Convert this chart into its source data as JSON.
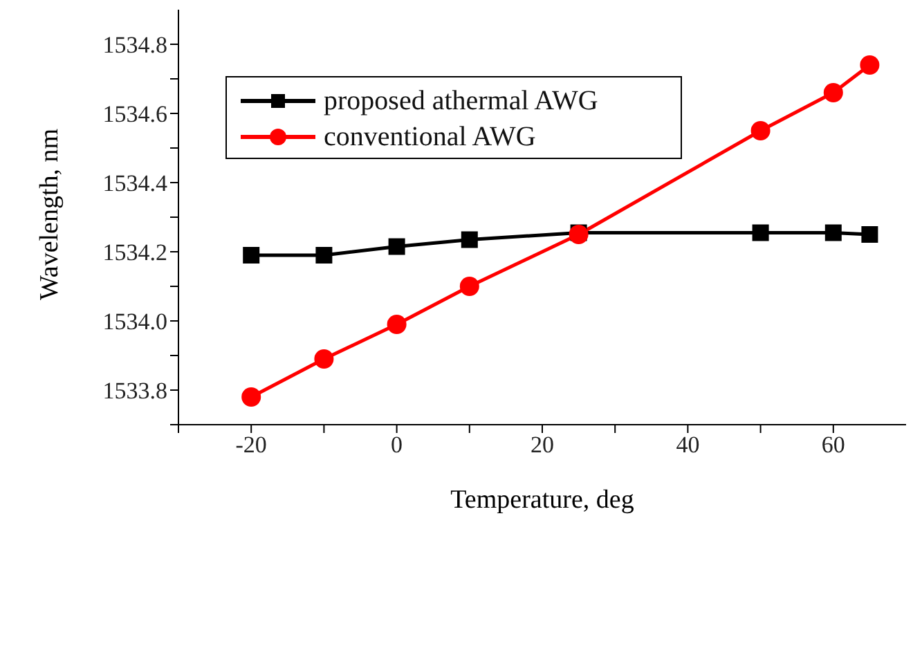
{
  "chart_data": {
    "type": "line",
    "xlabel": "Temperature, deg",
    "ylabel": "Wavelength, nm",
    "x": [
      -20,
      -10,
      0,
      10,
      25,
      50,
      60,
      65
    ],
    "series": [
      {
        "name": "proposed athermal AWG",
        "color": "#000000",
        "marker": "square",
        "values": [
          1534.19,
          1534.19,
          1534.215,
          1534.235,
          1534.255,
          1534.255,
          1534.255,
          1534.25
        ]
      },
      {
        "name": "conventional AWG",
        "color": "#ff0000",
        "marker": "circle",
        "values": [
          1533.78,
          1533.89,
          1533.99,
          1534.1,
          1534.25,
          1534.55,
          1534.66,
          1534.74
        ]
      }
    ],
    "xlim": [
      -30,
      70
    ],
    "xticks": [
      {
        "value": -30,
        "label": null
      },
      -20,
      {
        "value": -10,
        "label": null
      },
      0,
      {
        "value": 10,
        "label": null
      },
      20,
      {
        "value": 30,
        "label": null
      },
      40,
      {
        "value": 50,
        "label": null
      },
      60
    ],
    "ylim": [
      1533.7,
      1534.9
    ],
    "yticks": [
      {
        "value": 1533.7,
        "label": null
      },
      1533.8,
      {
        "value": 1533.9,
        "label": null
      },
      {
        "value": 1534.0,
        "label": "1534.0"
      },
      {
        "value": 1534.1,
        "label": null
      },
      1534.2,
      {
        "value": 1534.3,
        "label": null
      },
      1534.4,
      {
        "value": 1534.5,
        "label": null
      },
      1534.6,
      {
        "value": 1534.7,
        "label": null
      },
      1534.8
    ],
    "grid": false,
    "legend": "top left"
  }
}
